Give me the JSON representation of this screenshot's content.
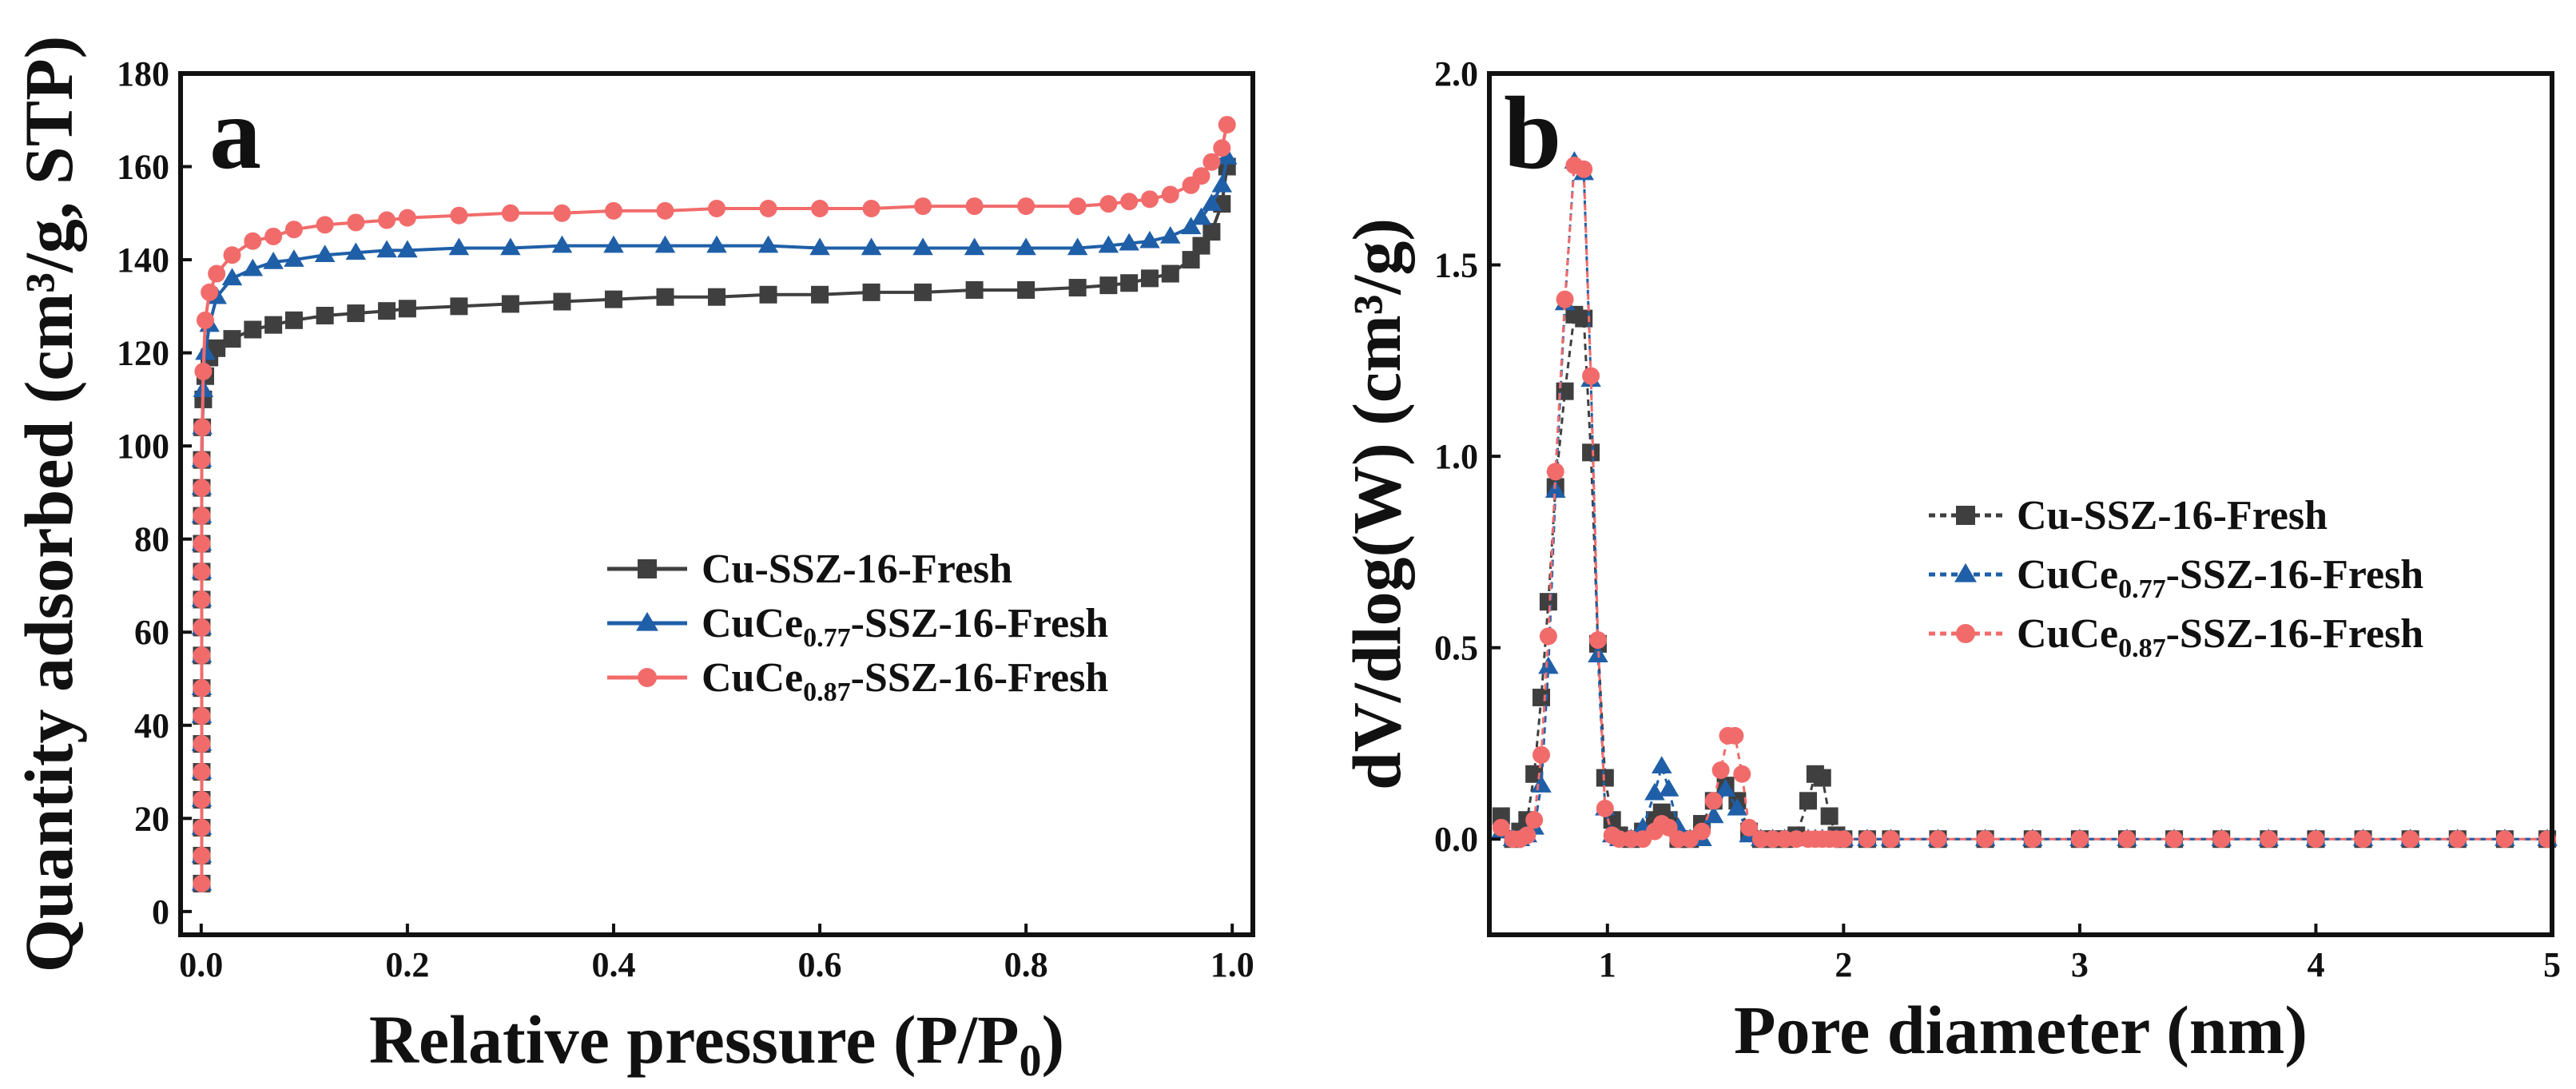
{
  "chart_data": [
    {
      "type": "line",
      "panel_label": "a",
      "xlabel": "Relative pressure (P/P",
      "xlabel_sub": "0",
      "xlabel_end": ")",
      "ylabel": "Quantity adsorbed (cm³/g, STP)",
      "xlim": [
        -0.02,
        1.02
      ],
      "ylim": [
        -5,
        180
      ],
      "xticks": [
        0.0,
        0.2,
        0.4,
        0.6,
        0.8,
        1.0
      ],
      "xtick_labels": [
        "0.0",
        "0.2",
        "0.4",
        "0.6",
        "0.8",
        "1.0"
      ],
      "yticks": [
        0,
        20,
        40,
        60,
        80,
        100,
        120,
        140,
        160,
        180
      ],
      "ytick_labels": [
        "0",
        "20",
        "40",
        "60",
        "80",
        "100",
        "120",
        "140",
        "160",
        "180"
      ],
      "legend_position": "center-right",
      "series": [
        {
          "name": "Cu-SSZ-16-Fresh",
          "label_parts": [
            "Cu-SSZ-16-Fresh"
          ],
          "color": "#3f3f3f",
          "marker": "square",
          "x": [
            0.0005,
            0.0005,
            0.0005,
            0.0005,
            0.0005,
            0.0005,
            0.0005,
            0.0005,
            0.0005,
            0.0005,
            0.0005,
            0.0005,
            0.0005,
            0.0005,
            0.0005,
            0.0005,
            0.001,
            0.002,
            0.004,
            0.008,
            0.015,
            0.03,
            0.05,
            0.07,
            0.09,
            0.12,
            0.15,
            0.18,
            0.2,
            0.25,
            0.3,
            0.35,
            0.4,
            0.45,
            0.5,
            0.55,
            0.6,
            0.65,
            0.7,
            0.75,
            0.8,
            0.85,
            0.88,
            0.9,
            0.92,
            0.94,
            0.96,
            0.97,
            0.98,
            0.99,
            0.995
          ],
          "y": [
            6,
            12,
            18,
            24,
            30,
            36,
            42,
            48,
            55,
            61,
            67,
            73,
            79,
            85,
            91,
            97,
            104,
            110,
            115,
            119,
            121,
            123,
            125,
            126,
            127,
            128,
            128.5,
            129,
            129.5,
            130,
            130.5,
            131,
            131.5,
            132,
            132,
            132.5,
            132.5,
            133,
            133,
            133.5,
            133.5,
            134,
            134.5,
            135,
            136,
            137,
            140,
            143,
            146,
            152,
            160
          ]
        },
        {
          "name": "CuCe0.77-SSZ-16-Fresh",
          "label_parts": [
            "CuCe",
            "0.77",
            "-SSZ-16-Fresh"
          ],
          "color": "#1f5fa8",
          "marker": "triangle",
          "x": [
            0.0005,
            0.0005,
            0.0005,
            0.0005,
            0.0005,
            0.0005,
            0.0005,
            0.0005,
            0.0005,
            0.0005,
            0.0005,
            0.0005,
            0.0005,
            0.0005,
            0.0005,
            0.0005,
            0.001,
            0.002,
            0.004,
            0.008,
            0.015,
            0.03,
            0.05,
            0.07,
            0.09,
            0.12,
            0.15,
            0.18,
            0.2,
            0.25,
            0.3,
            0.35,
            0.4,
            0.45,
            0.5,
            0.55,
            0.6,
            0.65,
            0.7,
            0.75,
            0.8,
            0.85,
            0.88,
            0.9,
            0.92,
            0.94,
            0.96,
            0.97,
            0.98,
            0.99,
            0.995
          ],
          "y": [
            6,
            12,
            18,
            24,
            30,
            36,
            42,
            48,
            55,
            61,
            67,
            73,
            79,
            85,
            91,
            97,
            104,
            112,
            120,
            126,
            132,
            136,
            138,
            139.5,
            140,
            141,
            141.5,
            142,
            142,
            142.5,
            142.5,
            143,
            143,
            143,
            143,
            143,
            142.5,
            142.5,
            142.5,
            142.5,
            142.5,
            142.5,
            143,
            143.5,
            144,
            145,
            147,
            149,
            152,
            156,
            162
          ]
        },
        {
          "name": "CuCe0.87-SSZ-16-Fresh",
          "label_parts": [
            "CuCe",
            "0.87",
            "-SSZ-16-Fresh"
          ],
          "color": "#f26b6b",
          "marker": "circle",
          "x": [
            0.0005,
            0.0005,
            0.0005,
            0.0005,
            0.0005,
            0.0005,
            0.0005,
            0.0005,
            0.0005,
            0.0005,
            0.0005,
            0.0005,
            0.0005,
            0.0005,
            0.0005,
            0.0005,
            0.001,
            0.002,
            0.004,
            0.008,
            0.015,
            0.03,
            0.05,
            0.07,
            0.09,
            0.12,
            0.15,
            0.18,
            0.2,
            0.25,
            0.3,
            0.35,
            0.4,
            0.45,
            0.5,
            0.55,
            0.6,
            0.65,
            0.7,
            0.75,
            0.8,
            0.85,
            0.88,
            0.9,
            0.92,
            0.94,
            0.96,
            0.97,
            0.98,
            0.99,
            0.995
          ],
          "y": [
            6,
            12,
            18,
            24,
            30,
            36,
            42,
            48,
            55,
            61,
            67,
            73,
            79,
            85,
            91,
            97,
            104,
            116,
            127,
            133,
            137,
            141,
            144,
            145,
            146.5,
            147.5,
            148,
            148.5,
            149,
            149.5,
            150,
            150,
            150.5,
            150.5,
            151,
            151,
            151,
            151,
            151.5,
            151.5,
            151.5,
            151.5,
            152,
            152.5,
            153,
            154,
            156,
            158,
            161,
            164,
            169
          ]
        }
      ]
    },
    {
      "type": "line",
      "panel_label": "b",
      "xlabel": "Pore diameter (nm)",
      "ylabel": "dV/dlog(W) (cm³/g)",
      "xlim": [
        0.5,
        5.0
      ],
      "ylim": [
        -0.25,
        2.0
      ],
      "xticks": [
        1,
        2,
        3,
        4,
        5
      ],
      "xtick_labels": [
        "1",
        "2",
        "3",
        "4",
        "5"
      ],
      "yticks": [
        0.0,
        0.5,
        1.0,
        1.5,
        2.0
      ],
      "ytick_labels": [
        "0.0",
        "0.5",
        "1.0",
        "1.5",
        "2.0"
      ],
      "legend_position": "center-right",
      "series": [
        {
          "name": "Cu-SSZ-16-Fresh",
          "label_parts": [
            "Cu-SSZ-16-Fresh"
          ],
          "color": "#3f3f3f",
          "marker": "square",
          "x": [
            0.55,
            0.6,
            0.63,
            0.66,
            0.69,
            0.72,
            0.75,
            0.78,
            0.82,
            0.86,
            0.9,
            0.93,
            0.96,
            0.99,
            1.02,
            1.05,
            1.1,
            1.15,
            1.2,
            1.23,
            1.26,
            1.3,
            1.35,
            1.4,
            1.45,
            1.5,
            1.55,
            1.6,
            1.65,
            1.7,
            1.75,
            1.8,
            1.85,
            1.88,
            1.91,
            1.94,
            1.97,
            2.0,
            2.1,
            2.2,
            2.4,
            2.6,
            2.8,
            3.0,
            3.2,
            3.4,
            3.6,
            3.8,
            4.0,
            4.2,
            4.4,
            4.6,
            4.8,
            4.98
          ],
          "y": [
            0.06,
            0.0,
            0.02,
            0.05,
            0.17,
            0.37,
            0.62,
            0.92,
            1.17,
            1.37,
            1.36,
            1.01,
            0.51,
            0.16,
            0.05,
            0.01,
            0.0,
            0.02,
            0.05,
            0.07,
            0.05,
            0.0,
            0.0,
            0.04,
            0.1,
            0.14,
            0.1,
            0.02,
            0.0,
            0.0,
            0.0,
            0.01,
            0.1,
            0.17,
            0.16,
            0.06,
            0.01,
            0.0,
            0.0,
            0.0,
            0.0,
            0.0,
            0.0,
            0.0,
            0.0,
            0.0,
            0.0,
            0.0,
            0.0,
            0.0,
            0.0,
            0.0,
            0.0,
            0.0
          ]
        },
        {
          "name": "CuCe0.77-SSZ-16-Fresh",
          "label_parts": [
            "CuCe",
            "0.77",
            "-SSZ-16-Fresh"
          ],
          "color": "#1f5fa8",
          "marker": "triangle",
          "x": [
            0.55,
            0.6,
            0.63,
            0.66,
            0.69,
            0.72,
            0.75,
            0.78,
            0.82,
            0.86,
            0.9,
            0.93,
            0.96,
            0.99,
            1.02,
            1.05,
            1.1,
            1.15,
            1.2,
            1.23,
            1.26,
            1.3,
            1.35,
            1.4,
            1.45,
            1.5,
            1.55,
            1.6,
            1.65,
            1.7,
            1.75,
            1.8,
            1.85,
            1.88,
            1.91,
            1.94,
            1.97,
            2.0,
            2.1,
            2.2,
            2.4,
            2.6,
            2.8,
            3.0,
            3.2,
            3.4,
            3.6,
            3.8,
            4.0,
            4.2,
            4.4,
            4.6,
            4.8,
            4.98
          ],
          "y": [
            0.02,
            0.0,
            0.0,
            0.01,
            0.03,
            0.14,
            0.45,
            0.91,
            1.4,
            1.77,
            1.74,
            1.2,
            0.48,
            0.08,
            0.01,
            0.0,
            0.0,
            0.03,
            0.12,
            0.19,
            0.13,
            0.03,
            0.0,
            0.0,
            0.06,
            0.13,
            0.08,
            0.01,
            0.0,
            0.0,
            0.0,
            0.0,
            0.0,
            0.0,
            0.0,
            0.0,
            0.0,
            0.0,
            0.0,
            0.0,
            0.0,
            0.0,
            0.0,
            0.0,
            0.0,
            0.0,
            0.0,
            0.0,
            0.0,
            0.0,
            0.0,
            0.0,
            0.0,
            0.0
          ]
        },
        {
          "name": "CuCe0.87-SSZ-16-Fresh",
          "label_parts": [
            "CuCe",
            "0.87",
            "-SSZ-16-Fresh"
          ],
          "color": "#f26b6b",
          "marker": "circle",
          "x": [
            0.55,
            0.6,
            0.63,
            0.66,
            0.69,
            0.72,
            0.75,
            0.78,
            0.82,
            0.86,
            0.9,
            0.93,
            0.96,
            0.99,
            1.02,
            1.05,
            1.1,
            1.15,
            1.2,
            1.23,
            1.26,
            1.3,
            1.35,
            1.4,
            1.45,
            1.48,
            1.51,
            1.54,
            1.57,
            1.6,
            1.65,
            1.7,
            1.75,
            1.8,
            1.85,
            1.88,
            1.91,
            1.94,
            1.97,
            2.0,
            2.1,
            2.2,
            2.4,
            2.6,
            2.8,
            3.0,
            3.2,
            3.4,
            3.6,
            3.8,
            4.0,
            4.2,
            4.4,
            4.6,
            4.8,
            4.98
          ],
          "y": [
            0.03,
            0.0,
            0.0,
            0.01,
            0.05,
            0.22,
            0.53,
            0.96,
            1.41,
            1.76,
            1.75,
            1.21,
            0.52,
            0.08,
            0.01,
            0.0,
            0.0,
            0.0,
            0.02,
            0.04,
            0.03,
            0.0,
            0.0,
            0.02,
            0.1,
            0.18,
            0.27,
            0.27,
            0.17,
            0.03,
            0.0,
            0.0,
            0.0,
            0.0,
            0.0,
            0.0,
            0.0,
            0.0,
            0.0,
            0.0,
            0.0,
            0.0,
            0.0,
            0.0,
            0.0,
            0.0,
            0.0,
            0.0,
            0.0,
            0.0,
            0.0,
            0.0,
            0.0,
            0.0,
            0.0,
            0.0
          ]
        }
      ]
    }
  ]
}
